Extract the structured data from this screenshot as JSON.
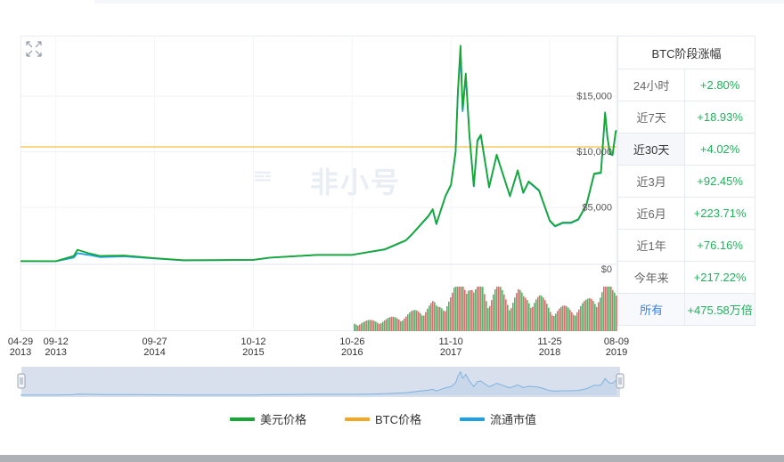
{
  "range_table": {
    "header": "BTC阶段涨幅",
    "rows": [
      {
        "label": "24小时",
        "value": "+2.80%"
      },
      {
        "label": "近7天",
        "value": "+18.93%"
      },
      {
        "label": "近30天",
        "value": "+4.02%"
      },
      {
        "label": "近3月",
        "value": "+92.45%"
      },
      {
        "label": "近6月",
        "value": "+223.71%"
      },
      {
        "label": "近1年",
        "value": "+76.16%"
      },
      {
        "label": "今年来",
        "value": "+217.22%"
      },
      {
        "label": "所有",
        "value": "+475.58万倍"
      }
    ],
    "active_index": 2,
    "highlight_index": 7
  },
  "watermark": "非小号",
  "legend": [
    {
      "name": "美元价格",
      "color": "#17a833"
    },
    {
      "name": "BTC价格",
      "color": "#f5a623"
    },
    {
      "name": "流通市值",
      "color": "#1ea0e6"
    }
  ],
  "chart_data": {
    "type": "line",
    "title": "",
    "xlabel": "",
    "ylabel": "",
    "y_tick_labels": [
      "$15,000",
      "$10,000",
      "$5,000",
      "$0"
    ],
    "ylim": [
      0,
      20000
    ],
    "x_tick_labels": [
      [
        "04-29",
        "2013"
      ],
      [
        "09-12",
        "2013"
      ],
      [
        "09-27",
        "2014"
      ],
      [
        "10-12",
        "2015"
      ],
      [
        "10-26",
        "2016"
      ],
      [
        "11-10",
        "2017"
      ],
      [
        "11-25",
        "2018"
      ],
      [
        "08-09",
        "2019"
      ]
    ],
    "btc_price_line": 10400,
    "grid": true,
    "legend_position": "bottom",
    "series": [
      {
        "name": "美元价格",
        "color": "#17a833",
        "points": [
          [
            "2013-04-29",
            140
          ],
          [
            "2013-09-12",
            130
          ],
          [
            "2013-11-20",
            600
          ],
          [
            "2013-12-04",
            1150
          ],
          [
            "2014-01-15",
            850
          ],
          [
            "2014-03-01",
            600
          ],
          [
            "2014-06-01",
            640
          ],
          [
            "2014-09-27",
            400
          ],
          [
            "2015-01-15",
            220
          ],
          [
            "2015-06-01",
            230
          ],
          [
            "2015-10-12",
            250
          ],
          [
            "2015-12-15",
            450
          ],
          [
            "2016-06-15",
            700
          ],
          [
            "2016-10-26",
            700
          ],
          [
            "2016-12-31",
            960
          ],
          [
            "2017-03-01",
            1200
          ],
          [
            "2017-05-20",
            2000
          ],
          [
            "2017-06-15",
            2600
          ],
          [
            "2017-08-15",
            4200
          ],
          [
            "2017-09-01",
            4800
          ],
          [
            "2017-09-15",
            3500
          ],
          [
            "2017-10-20",
            6000
          ],
          [
            "2017-11-10",
            7000
          ],
          [
            "2017-11-28",
            10000
          ],
          [
            "2017-12-07",
            15500
          ],
          [
            "2017-12-17",
            19500
          ],
          [
            "2017-12-25",
            13800
          ],
          [
            "2018-01-06",
            17000
          ],
          [
            "2018-01-20",
            11500
          ],
          [
            "2018-02-06",
            6900
          ],
          [
            "2018-02-20",
            11000
          ],
          [
            "2018-03-05",
            11500
          ],
          [
            "2018-04-06",
            6800
          ],
          [
            "2018-05-05",
            9700
          ],
          [
            "2018-06-25",
            6000
          ],
          [
            "2018-07-25",
            8300
          ],
          [
            "2018-08-15",
            6300
          ],
          [
            "2018-09-05",
            7300
          ],
          [
            "2018-10-15",
            6500
          ],
          [
            "2018-11-25",
            3800
          ],
          [
            "2018-12-15",
            3300
          ],
          [
            "2019-01-15",
            3600
          ],
          [
            "2019-02-15",
            3600
          ],
          [
            "2019-03-15",
            3900
          ],
          [
            "2019-04-15",
            5200
          ],
          [
            "2019-05-15",
            8000
          ],
          [
            "2019-06-10",
            8100
          ],
          [
            "2019-06-26",
            13500
          ],
          [
            "2019-07-05",
            11300
          ],
          [
            "2019-07-15",
            9800
          ],
          [
            "2019-07-25",
            9700
          ],
          [
            "2019-08-06",
            11800
          ],
          [
            "2019-08-09",
            11900
          ]
        ]
      },
      {
        "name": "流通市值",
        "color": "#1ea0e6",
        "points": [
          [
            "2013-04-29",
            130
          ],
          [
            "2013-09-12",
            120
          ],
          [
            "2013-11-20",
            450
          ],
          [
            "2013-12-04",
            850
          ],
          [
            "2014-01-15",
            700
          ],
          [
            "2014-03-01",
            500
          ],
          [
            "2014-06-01",
            560
          ],
          [
            "2014-09-27",
            370
          ],
          [
            "2015-01-15",
            200
          ],
          [
            "2015-06-01",
            220
          ],
          [
            "2015-10-12",
            240
          ],
          [
            "2015-12-15",
            440
          ],
          [
            "2016-06-15",
            690
          ],
          [
            "2016-10-26",
            690
          ],
          [
            "2016-12-31",
            950
          ],
          [
            "2017-03-01",
            1180
          ],
          [
            "2017-05-20",
            1980
          ],
          [
            "2017-06-15",
            2580
          ],
          [
            "2017-08-15",
            4150
          ],
          [
            "2017-09-01",
            4750
          ],
          [
            "2017-09-15",
            3450
          ],
          [
            "2017-10-20",
            5950
          ],
          [
            "2017-11-10",
            6950
          ],
          [
            "2017-11-28",
            9900
          ],
          [
            "2017-12-07",
            15300
          ],
          [
            "2017-12-17",
            18800
          ],
          [
            "2017-12-25",
            13600
          ],
          [
            "2018-01-06",
            16800
          ],
          [
            "2018-01-20",
            11400
          ],
          [
            "2018-02-06",
            6850
          ],
          [
            "2018-02-20",
            10900
          ],
          [
            "2018-03-05",
            11400
          ],
          [
            "2018-04-06",
            6750
          ],
          [
            "2018-05-05",
            9650
          ],
          [
            "2018-06-25",
            5950
          ],
          [
            "2018-07-25",
            8250
          ],
          [
            "2018-08-15",
            6250
          ],
          [
            "2018-09-05",
            7250
          ],
          [
            "2018-10-15",
            6450
          ],
          [
            "2018-11-25",
            3750
          ],
          [
            "2018-12-15",
            3250
          ],
          [
            "2019-01-15",
            3550
          ],
          [
            "2019-02-15",
            3550
          ],
          [
            "2019-03-15",
            3850
          ],
          [
            "2019-04-15",
            5150
          ],
          [
            "2019-05-15",
            7950
          ],
          [
            "2019-06-10",
            8050
          ],
          [
            "2019-06-26",
            13400
          ],
          [
            "2019-07-05",
            11200
          ],
          [
            "2019-07-15",
            9750
          ],
          [
            "2019-07-25",
            9650
          ],
          [
            "2019-08-06",
            11700
          ],
          [
            "2019-08-09",
            11800
          ]
        ]
      }
    ]
  }
}
